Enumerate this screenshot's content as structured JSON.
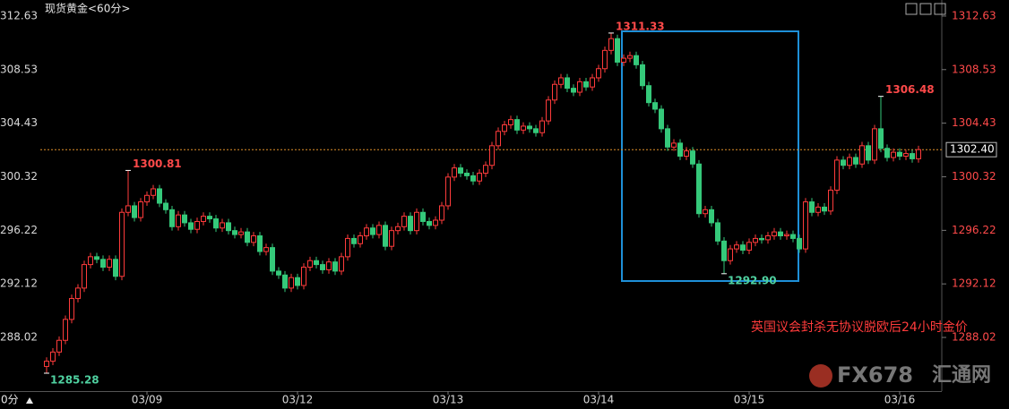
{
  "chart_data": {
    "type": "candlestick",
    "title": "现货黄金<60分>",
    "corner_label": "0分",
    "annotation": "英国议会封杀无协议脱欧后24小时金价",
    "watermark": "FX678",
    "watermark_cn": "汇通网",
    "up_color": "#ff3b3b",
    "down_color": "#35c97a",
    "ylim": [
      1283.91,
      1313.86
    ],
    "yticks": [
      1312.63,
      1308.53,
      1304.43,
      1300.32,
      1296.22,
      1292.12,
      1288.02
    ],
    "current": {
      "value": 1302.4,
      "label": "1302.40"
    },
    "categories": [
      null,
      null,
      null,
      null,
      null,
      null,
      null,
      null,
      null,
      null,
      null,
      null,
      null,
      null,
      null,
      null,
      "03/09",
      null,
      null,
      null,
      null,
      null,
      null,
      null,
      null,
      null,
      null,
      null,
      null,
      null,
      null,
      null,
      null,
      null,
      null,
      null,
      null,
      null,
      null,
      null,
      "03/12",
      null,
      null,
      null,
      null,
      null,
      null,
      null,
      null,
      null,
      null,
      null,
      null,
      null,
      null,
      null,
      null,
      null,
      null,
      null,
      null,
      null,
      null,
      null,
      "03/13",
      null,
      null,
      null,
      null,
      null,
      null,
      null,
      null,
      null,
      null,
      null,
      null,
      null,
      null,
      null,
      null,
      null,
      null,
      null,
      null,
      null,
      null,
      null,
      "03/14",
      null,
      null,
      null,
      null,
      null,
      null,
      null,
      null,
      null,
      null,
      null,
      null,
      null,
      null,
      null,
      null,
      null,
      null,
      null,
      null,
      null,
      null,
      null,
      "03/15",
      null,
      null,
      null,
      null,
      null,
      null,
      null,
      null,
      null,
      null,
      null,
      null,
      null,
      null,
      null,
      null,
      null,
      null,
      null,
      null,
      null,
      null,
      null,
      "03/16",
      null,
      null,
      null
    ],
    "open": [
      1285.8,
      1286.2,
      1286.9,
      1287.8,
      1289.4,
      1291.0,
      1291.8,
      1293.6,
      1294.2,
      1294.0,
      1293.4,
      1294.0,
      1292.7,
      1297.6,
      1298.1,
      1297.2,
      1298.4,
      1298.9,
      1299.4,
      1298.3,
      1297.8,
      1296.5,
      1297.4,
      1296.8,
      1296.3,
      1296.9,
      1297.3,
      1297.1,
      1296.4,
      1296.8,
      1296.2,
      1295.9,
      1296.1,
      1295.3,
      1295.8,
      1294.6,
      1294.9,
      1293.1,
      1292.8,
      1291.8,
      1292.6,
      1292.0,
      1293.4,
      1293.9,
      1293.6,
      1293.2,
      1293.8,
      1293.1,
      1294.2,
      1295.6,
      1295.2,
      1295.8,
      1296.4,
      1295.9,
      1296.6,
      1295.0,
      1296.2,
      1296.5,
      1297.3,
      1296.2,
      1297.6,
      1296.9,
      1296.6,
      1297.0,
      1298.1,
      1300.3,
      1301.0,
      1300.6,
      1300.4,
      1300.0,
      1300.6,
      1301.2,
      1302.7,
      1303.8,
      1304.3,
      1304.7,
      1303.9,
      1304.2,
      1304.0,
      1303.7,
      1304.6,
      1306.2,
      1307.4,
      1307.9,
      1307.1,
      1306.8,
      1307.6,
      1307.2,
      1307.9,
      1308.6,
      1310.0,
      1310.9,
      1309.1,
      1309.4,
      1309.6,
      1308.9,
      1307.3,
      1306.0,
      1305.5,
      1304.0,
      1302.6,
      1302.9,
      1301.9,
      1302.3,
      1301.3,
      1297.5,
      1297.8,
      1296.8,
      1295.4,
      1293.9,
      1294.8,
      1295.1,
      1294.7,
      1295.3,
      1295.6,
      1295.5,
      1295.8,
      1296.1,
      1295.8,
      1295.9,
      1295.6,
      1294.8,
      1298.4,
      1297.6,
      1298.0,
      1297.7,
      1299.3,
      1301.6,
      1301.2,
      1301.8,
      1301.3,
      1302.7,
      1301.6,
      1304.0,
      1302.5,
      1301.8,
      1302.2,
      1301.9,
      1302.1,
      1301.7
    ],
    "high": [
      1286.5,
      1287.2,
      1288.1,
      1289.7,
      1291.3,
      1292.1,
      1293.9,
      1294.5,
      1294.5,
      1294.3,
      1294.3,
      1294.3,
      1297.9,
      1300.81,
      1298.4,
      1298.7,
      1299.2,
      1299.7,
      1299.7,
      1298.6,
      1298.1,
      1297.7,
      1297.7,
      1297.1,
      1297.2,
      1297.6,
      1297.6,
      1297.4,
      1297.1,
      1297.1,
      1296.5,
      1296.4,
      1296.4,
      1296.1,
      1296.1,
      1295.2,
      1295.2,
      1293.4,
      1293.1,
      1292.9,
      1292.9,
      1293.7,
      1294.2,
      1294.2,
      1293.9,
      1294.1,
      1294.1,
      1294.5,
      1295.9,
      1295.9,
      1296.1,
      1296.7,
      1296.7,
      1296.9,
      1296.9,
      1296.5,
      1296.8,
      1297.6,
      1297.6,
      1297.9,
      1297.9,
      1297.2,
      1297.3,
      1298.4,
      1300.6,
      1301.3,
      1301.3,
      1300.9,
      1300.7,
      1300.9,
      1301.5,
      1303.0,
      1304.1,
      1304.6,
      1305.0,
      1305.0,
      1304.5,
      1304.5,
      1304.3,
      1304.9,
      1306.5,
      1307.7,
      1308.2,
      1308.2,
      1307.4,
      1307.9,
      1307.9,
      1308.2,
      1308.9,
      1310.3,
      1311.33,
      1311.2,
      1309.7,
      1309.9,
      1309.9,
      1309.2,
      1307.6,
      1306.3,
      1305.8,
      1304.3,
      1303.2,
      1303.2,
      1302.6,
      1302.6,
      1301.6,
      1298.1,
      1298.1,
      1297.1,
      1295.7,
      1295.1,
      1295.4,
      1295.4,
      1295.6,
      1295.9,
      1295.9,
      1296.1,
      1296.4,
      1296.4,
      1296.2,
      1296.2,
      1295.9,
      1298.7,
      1298.7,
      1298.3,
      1298.3,
      1299.6,
      1301.9,
      1301.9,
      1302.1,
      1302.1,
      1303.0,
      1303.0,
      1304.3,
      1306.48,
      1302.8,
      1302.5,
      1302.5,
      1302.4,
      1302.4,
      1302.7
    ],
    "low": [
      1285.28,
      1285.9,
      1286.6,
      1287.5,
      1289.1,
      1290.7,
      1291.5,
      1293.3,
      1293.7,
      1293.1,
      1293.1,
      1292.4,
      1292.4,
      1297.3,
      1296.9,
      1296.9,
      1298.1,
      1298.6,
      1298.0,
      1297.5,
      1296.2,
      1296.2,
      1296.5,
      1296.0,
      1296.0,
      1296.6,
      1296.8,
      1296.1,
      1296.1,
      1295.9,
      1295.6,
      1295.6,
      1295.0,
      1295.0,
      1294.3,
      1294.3,
      1292.8,
      1292.5,
      1291.5,
      1291.5,
      1291.7,
      1291.7,
      1293.1,
      1293.3,
      1292.9,
      1292.9,
      1292.8,
      1292.8,
      1293.9,
      1294.9,
      1294.9,
      1295.5,
      1295.6,
      1295.6,
      1294.7,
      1294.7,
      1295.9,
      1296.2,
      1295.9,
      1295.9,
      1296.6,
      1296.3,
      1296.3,
      1296.7,
      1297.8,
      1300.0,
      1300.3,
      1300.1,
      1299.7,
      1299.7,
      1300.3,
      1300.9,
      1302.4,
      1303.5,
      1304.0,
      1303.6,
      1303.6,
      1303.7,
      1303.4,
      1303.4,
      1304.3,
      1305.9,
      1307.1,
      1306.8,
      1306.5,
      1306.5,
      1306.9,
      1306.9,
      1307.6,
      1308.3,
      1309.7,
      1308.8,
      1308.8,
      1309.1,
      1308.6,
      1307.0,
      1305.7,
      1305.2,
      1303.7,
      1302.3,
      1302.3,
      1301.6,
      1301.6,
      1301.0,
      1297.2,
      1297.2,
      1296.5,
      1295.1,
      1292.9,
      1293.6,
      1294.5,
      1294.4,
      1294.4,
      1295.0,
      1295.2,
      1295.2,
      1295.5,
      1295.5,
      1295.5,
      1295.3,
      1294.5,
      1294.5,
      1297.3,
      1297.3,
      1297.4,
      1297.4,
      1299.0,
      1300.9,
      1300.9,
      1301.0,
      1301.0,
      1301.3,
      1301.3,
      1302.2,
      1301.5,
      1301.5,
      1301.6,
      1301.6,
      1301.4,
      1301.4
    ],
    "close": [
      1286.2,
      1286.9,
      1287.8,
      1289.4,
      1291.0,
      1291.8,
      1293.6,
      1294.2,
      1294.0,
      1293.4,
      1294.0,
      1292.7,
      1297.6,
      1298.1,
      1297.2,
      1298.4,
      1298.9,
      1299.4,
      1298.3,
      1297.8,
      1296.5,
      1297.4,
      1296.8,
      1296.3,
      1296.9,
      1297.3,
      1297.1,
      1296.4,
      1296.8,
      1296.2,
      1295.9,
      1296.1,
      1295.3,
      1295.8,
      1294.6,
      1294.9,
      1293.1,
      1292.8,
      1291.8,
      1292.6,
      1292.0,
      1293.4,
      1293.9,
      1293.6,
      1293.2,
      1293.8,
      1293.1,
      1294.2,
      1295.6,
      1295.2,
      1295.8,
      1296.4,
      1295.9,
      1296.6,
      1295.0,
      1296.2,
      1296.5,
      1297.3,
      1296.2,
      1297.6,
      1296.9,
      1296.6,
      1297.0,
      1298.1,
      1300.3,
      1301.0,
      1300.6,
      1300.4,
      1300.0,
      1300.6,
      1301.2,
      1302.7,
      1303.8,
      1304.3,
      1304.7,
      1303.9,
      1304.2,
      1304.0,
      1303.7,
      1304.6,
      1306.2,
      1307.4,
      1307.9,
      1307.1,
      1306.8,
      1307.6,
      1307.2,
      1307.9,
      1308.6,
      1310.0,
      1310.9,
      1309.1,
      1309.4,
      1309.6,
      1308.9,
      1307.3,
      1306.0,
      1305.5,
      1304.0,
      1302.6,
      1302.9,
      1301.9,
      1302.3,
      1301.3,
      1297.5,
      1297.8,
      1296.8,
      1295.4,
      1293.9,
      1294.8,
      1295.1,
      1294.7,
      1295.3,
      1295.6,
      1295.5,
      1295.8,
      1296.1,
      1295.8,
      1295.9,
      1295.6,
      1294.8,
      1298.4,
      1297.6,
      1298.0,
      1297.7,
      1299.3,
      1301.6,
      1301.2,
      1301.8,
      1301.3,
      1302.7,
      1301.6,
      1304.0,
      1302.5,
      1301.8,
      1302.2,
      1301.9,
      1302.1,
      1301.7,
      1302.4
    ],
    "high_labels": [
      null,
      null,
      null,
      null,
      null,
      null,
      null,
      null,
      null,
      null,
      null,
      null,
      null,
      "1300.81",
      null,
      null,
      null,
      null,
      null,
      null,
      null,
      null,
      null,
      null,
      null,
      null,
      null,
      null,
      null,
      null,
      null,
      null,
      null,
      null,
      null,
      null,
      null,
      null,
      null,
      null,
      null,
      null,
      null,
      null,
      null,
      null,
      null,
      null,
      null,
      null,
      null,
      null,
      null,
      null,
      null,
      null,
      null,
      null,
      null,
      null,
      null,
      null,
      null,
      null,
      null,
      null,
      null,
      null,
      null,
      null,
      null,
      null,
      null,
      null,
      null,
      null,
      null,
      null,
      null,
      null,
      null,
      null,
      null,
      null,
      null,
      null,
      null,
      null,
      null,
      null,
      "1311.33",
      null,
      null,
      null,
      null,
      null,
      null,
      null,
      null,
      null,
      null,
      null,
      null,
      null,
      null,
      null,
      null,
      null,
      null,
      null,
      null,
      null,
      null,
      null,
      null,
      null,
      null,
      null,
      null,
      null,
      null,
      null,
      null,
      null,
      null,
      null,
      null,
      null,
      null,
      null,
      null,
      null,
      null,
      "1306.48",
      null,
      null,
      null,
      null,
      null,
      null
    ],
    "low_labels": [
      "1285.28",
      null,
      null,
      null,
      null,
      null,
      null,
      null,
      null,
      null,
      null,
      null,
      null,
      null,
      null,
      null,
      null,
      null,
      null,
      null,
      null,
      null,
      null,
      null,
      null,
      null,
      null,
      null,
      null,
      null,
      null,
      null,
      null,
      null,
      null,
      null,
      null,
      null,
      null,
      null,
      null,
      null,
      null,
      null,
      null,
      null,
      null,
      null,
      null,
      null,
      null,
      null,
      null,
      null,
      null,
      null,
      null,
      null,
      null,
      null,
      null,
      null,
      null,
      null,
      null,
      null,
      null,
      null,
      null,
      null,
      null,
      null,
      null,
      null,
      null,
      null,
      null,
      null,
      null,
      null,
      null,
      null,
      null,
      null,
      null,
      null,
      null,
      null,
      null,
      null,
      null,
      null,
      null,
      null,
      null,
      null,
      null,
      null,
      null,
      null,
      null,
      null,
      null,
      null,
      null,
      null,
      null,
      null,
      "1292.90",
      null,
      null,
      null,
      null,
      null,
      null,
      null,
      null,
      null,
      null,
      null,
      null,
      null,
      null,
      null,
      null,
      null,
      null,
      null,
      null,
      null,
      null,
      null,
      null,
      null,
      null,
      null,
      null,
      null,
      null,
      null
    ]
  }
}
